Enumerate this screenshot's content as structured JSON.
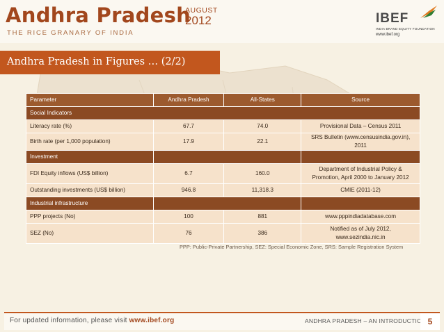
{
  "header": {
    "title": "Andhra Pradesh",
    "subtitle": "THE RICE GRANARY OF INDIA",
    "date_month": "AUGUST",
    "date_year": "2012",
    "logo": {
      "text": "IBEF",
      "tagline": "INDIA BRAND EQUITY FOUNDATION",
      "url": "www.ibef.org"
    }
  },
  "section_title": "Andhra Pradesh in Figures … (2/2)",
  "table": {
    "headers": [
      "Parameter",
      "Andhra Pradesh",
      "All-States",
      "Source"
    ],
    "groups": [
      {
        "label": "Social Indicators",
        "rows": [
          {
            "parameter": "Literacy rate (%)",
            "ap": "67.7",
            "all": "74.0",
            "source": "Provisional Data – Census 2011"
          },
          {
            "parameter": "Birth rate (per 1,000 population)",
            "ap": "17.9",
            "all": "22.1",
            "source": "SRS Bulletin (www.censusindia.gov.in), 2011"
          }
        ]
      },
      {
        "label": "Investment",
        "rows": [
          {
            "parameter": "FDI Equity inflows (US$ billion)",
            "ap": "6.7",
            "all": "160.0",
            "source_line1": "Department of Industrial Policy &",
            "source_line2": "Promotion, April 2000 to January 2012"
          },
          {
            "parameter": "Outstanding investments (US$ billion)",
            "ap": "946.8",
            "all": "11,318.3",
            "source": "CMIE (2011-12)"
          }
        ]
      },
      {
        "label": "Industrial infrastructure",
        "rows": [
          {
            "parameter": "PPP projects (No)",
            "ap": "100",
            "all": "881",
            "source": "www.pppindiadatabase.com"
          },
          {
            "parameter": "SEZ (No)",
            "ap": "76",
            "all": "386",
            "source_line1": "Notified as of July 2012,",
            "source_line2": "www.sezindia.nic.in"
          }
        ]
      }
    ]
  },
  "footnote": "PPP: Public-Private Partnership, SEZ: Special Economic Zone, SRS: Sample Registration System",
  "footer": {
    "left_prefix": "For updated information, please visit ",
    "left_link": "www.ibef.org",
    "right": "ANDHRA PRADESH – AN INTRODUCTION",
    "page_number": "5"
  },
  "colors": {
    "brand": "#c2571e",
    "header_row": "#9c5a2e",
    "group_row": "#8b4a23",
    "data_row": "#f6e2cb"
  }
}
